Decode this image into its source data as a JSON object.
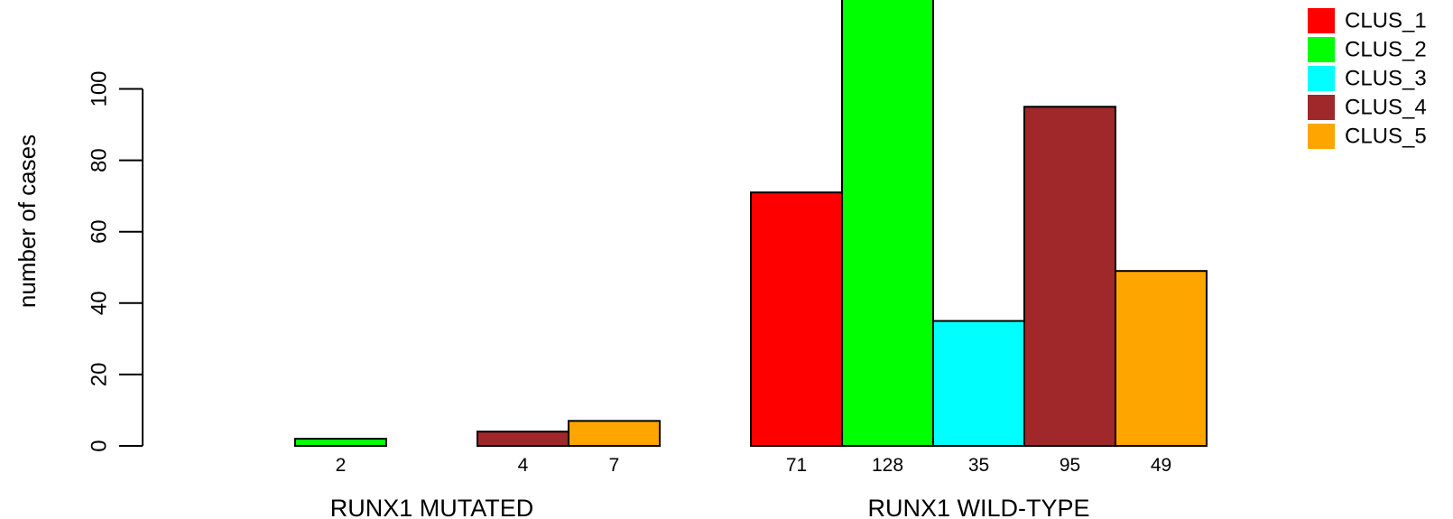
{
  "chart_data": {
    "type": "bar",
    "ylabel": "number of cases",
    "ylim": [
      0,
      128
    ],
    "yticks": [
      0,
      20,
      40,
      60,
      80,
      100
    ],
    "groups": [
      {
        "label": "RUNX1 MUTATED",
        "values": [
          0,
          2,
          0,
          4,
          7
        ],
        "data_labels": [
          "",
          "2",
          "",
          "4",
          "7"
        ]
      },
      {
        "label": "RUNX1 WILD-TYPE",
        "values": [
          71,
          128,
          35,
          95,
          49
        ],
        "data_labels": [
          "71",
          "128",
          "35",
          "95",
          "49"
        ]
      }
    ],
    "series": [
      {
        "name": "CLUS_1",
        "color": "#ff0000"
      },
      {
        "name": "CLUS_2",
        "color": "#00ff00"
      },
      {
        "name": "CLUS_3",
        "color": "#00ffff"
      },
      {
        "name": "CLUS_4",
        "color": "#a0282a"
      },
      {
        "name": "CLUS_5",
        "color": "#ffa500"
      }
    ],
    "legend": "top-right"
  }
}
